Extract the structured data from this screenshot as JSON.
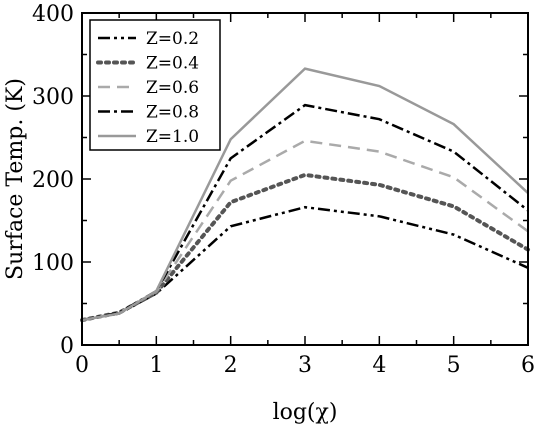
{
  "chart_data": {
    "type": "line",
    "xlabel": "log(χ)",
    "ylabel": "Surface Temp. (K)",
    "xlim": [
      0,
      6
    ],
    "ylim": [
      0,
      400
    ],
    "x_ticks": [
      "0",
      "1",
      "2",
      "3",
      "4",
      "5",
      "6"
    ],
    "y_ticks": [
      "0",
      "100",
      "200",
      "300",
      "400"
    ],
    "grid": false,
    "legend_position": "top-left",
    "x": [
      0,
      0.5,
      1,
      2,
      3,
      4,
      5,
      6
    ],
    "series": [
      {
        "name": "Z=0.2",
        "values": [
          30,
          38,
          62,
          143,
          166,
          155,
          133,
          93
        ],
        "color": "#000000",
        "dash": "dash-dot-dot"
      },
      {
        "name": "Z=0.4",
        "values": [
          30,
          39,
          63,
          172,
          205,
          193,
          167,
          115
        ],
        "color": "#555555",
        "dash": "dotted"
      },
      {
        "name": "Z=0.6",
        "values": [
          30,
          39,
          64,
          198,
          246,
          233,
          202,
          137
        ],
        "color": "#aaaaaa",
        "dash": "dashed"
      },
      {
        "name": "Z=0.8",
        "values": [
          30,
          39,
          65,
          225,
          289,
          272,
          233,
          162
        ],
        "color": "#000000",
        "dash": "dash-dot"
      },
      {
        "name": "Z=1.0",
        "values": [
          30,
          38,
          65,
          248,
          333,
          312,
          266,
          183
        ],
        "color": "#999999",
        "dash": "solid"
      }
    ]
  }
}
